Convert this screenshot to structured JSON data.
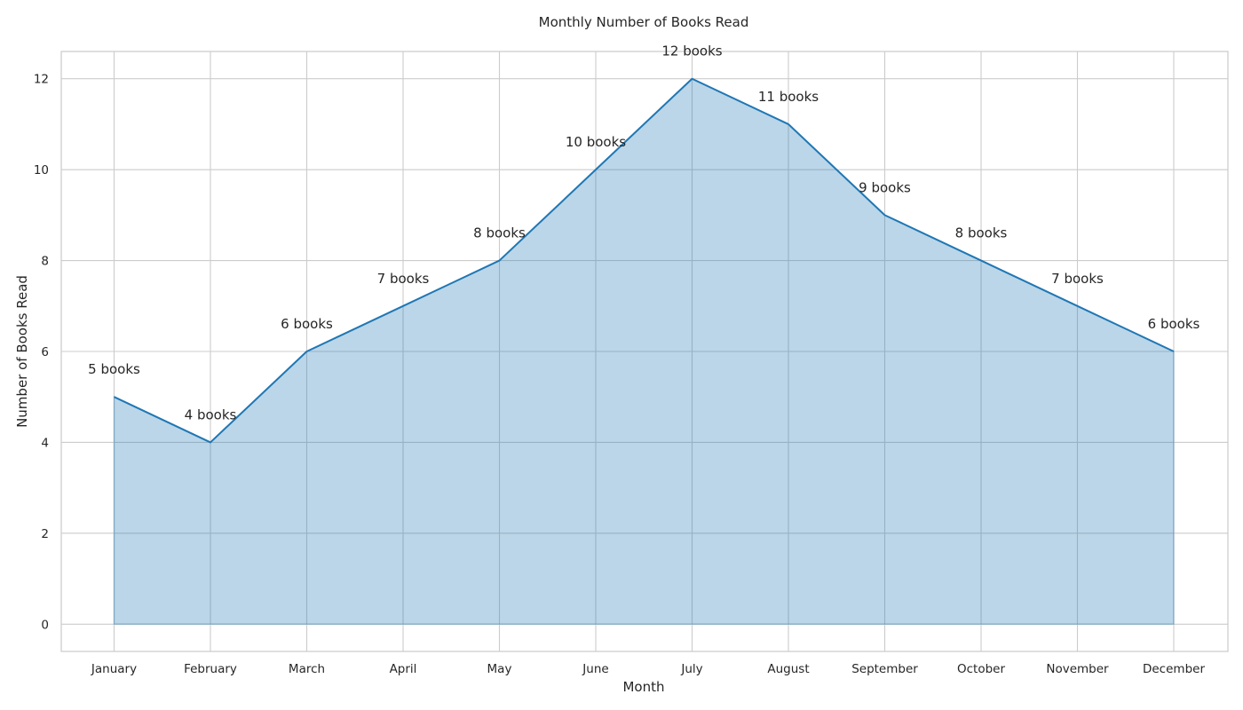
{
  "chart_data": {
    "type": "area",
    "title": "Monthly Number of Books Read",
    "xlabel": "Month",
    "ylabel": "Number of Books Read",
    "categories": [
      "January",
      "February",
      "March",
      "April",
      "May",
      "June",
      "July",
      "August",
      "September",
      "October",
      "November",
      "December"
    ],
    "values": [
      5,
      4,
      6,
      7,
      8,
      10,
      12,
      11,
      9,
      8,
      7,
      6
    ],
    "data_labels": [
      "5 books",
      "4 books",
      "6 books",
      "7 books",
      "8 books",
      "10 books",
      "12 books",
      "11 books",
      "9 books",
      "8 books",
      "7 books",
      "6 books"
    ],
    "yticks": [
      0,
      2,
      4,
      6,
      8,
      10,
      12
    ],
    "ylim": [
      -0.6,
      12.6
    ],
    "grid": true,
    "colors": {
      "line": "#1f77b4",
      "fill": "#1f77b4",
      "grid": "#cccccc",
      "frame": "#cccccc"
    }
  }
}
